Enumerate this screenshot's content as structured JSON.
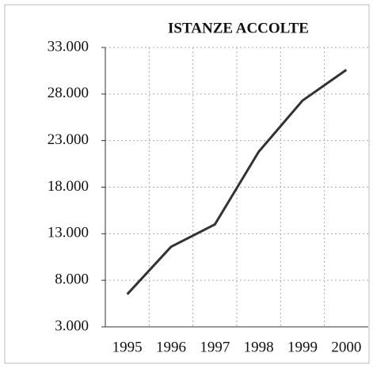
{
  "chart_data": {
    "type": "line",
    "title": "ISTANZE ACCOLTE",
    "categories": [
      "1995",
      "1996",
      "1997",
      "1998",
      "1999",
      "2000"
    ],
    "series": [
      {
        "name": "ISTANZE ACCOLTE",
        "color": "#333333",
        "values": [
          6500,
          11600,
          14000,
          21800,
          27300,
          30600
        ]
      }
    ],
    "ylim": [
      3000,
      33000
    ],
    "yticks": [
      {
        "value": 3000,
        "label": "3.000"
      },
      {
        "value": 8000,
        "label": "8.000"
      },
      {
        "value": 13000,
        "label": "13.000"
      },
      {
        "value": 18000,
        "label": "18.000"
      },
      {
        "value": 23000,
        "label": "23.000"
      },
      {
        "value": 28000,
        "label": "28.000"
      },
      {
        "value": 33000,
        "label": "33.000"
      }
    ],
    "grid": true
  }
}
